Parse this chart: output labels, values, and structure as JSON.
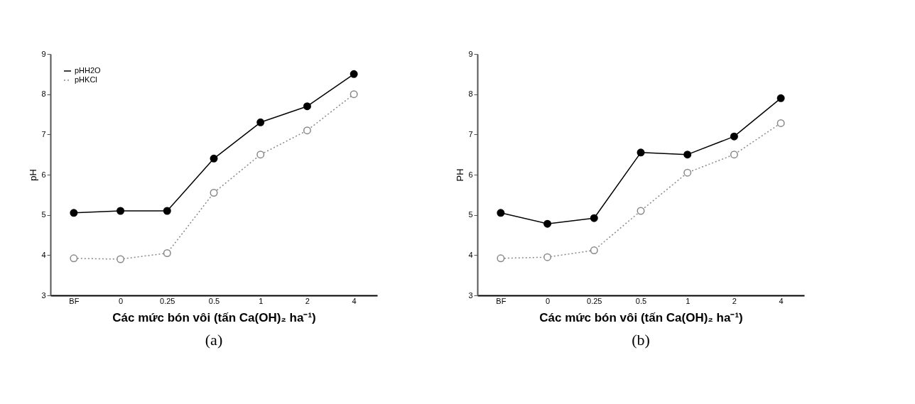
{
  "chart_data": [
    {
      "type": "line",
      "categories": [
        "BF",
        "0",
        "0.25",
        "0.5",
        "1",
        "2",
        "4"
      ],
      "xlabel": "Các mức bón vôi  (tấn Ca(OH)₂ ha⁻¹)",
      "ylabel": "pH",
      "ylim": [
        3,
        9
      ],
      "yticks": [
        3,
        4,
        5,
        6,
        7,
        8,
        9
      ],
      "grid": false,
      "legend": "top left",
      "marker": "circle",
      "annotations": [
        "(a)"
      ],
      "series": [
        {
          "name": "pHH2O",
          "color": "#000000",
          "line_style": "solid",
          "values": [
            5.05,
            5.1,
            5.1,
            6.4,
            7.3,
            7.7,
            8.5
          ]
        },
        {
          "name": "pHKCl",
          "color": "#888888",
          "line_style": "dotted",
          "values": [
            3.92,
            3.9,
            4.05,
            5.55,
            6.5,
            7.1,
            8.0
          ]
        }
      ]
    },
    {
      "type": "line",
      "categories": [
        "BF",
        "0",
        "0.25",
        "0.5",
        "1",
        "2",
        "4"
      ],
      "xlabel": "Các mức bón vôi  (tấn Ca(OH)₂ ha⁻¹)",
      "ylabel": "PH",
      "ylim": [
        3,
        9
      ],
      "yticks": [
        3,
        4,
        5,
        6,
        7,
        8,
        9
      ],
      "grid": false,
      "legend": "top left",
      "marker": "circle",
      "annotations": [
        "(b)"
      ],
      "series": [
        {
          "name": "pHH2O",
          "color": "#000000",
          "line_style": "solid",
          "values": [
            5.05,
            4.78,
            4.92,
            6.55,
            6.5,
            6.95,
            7.9
          ]
        },
        {
          "name": "pHKCl",
          "color": "#888888",
          "line_style": "dotted",
          "values": [
            3.92,
            3.95,
            4.12,
            5.1,
            6.05,
            6.5,
            7.28
          ]
        }
      ]
    }
  ]
}
